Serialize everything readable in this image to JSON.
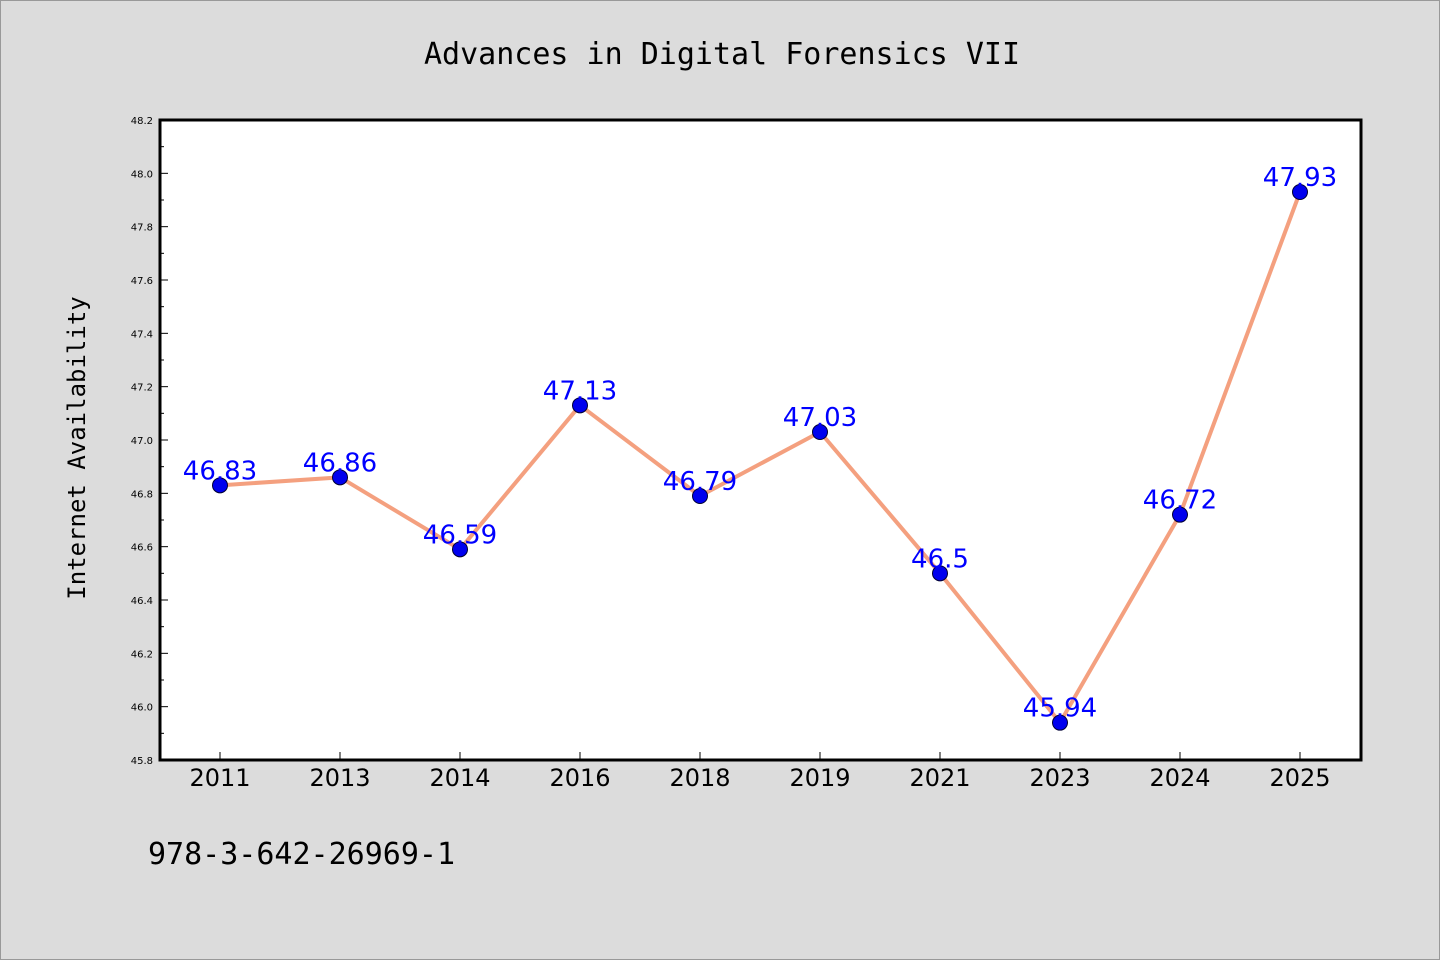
{
  "chart_data": {
    "type": "line",
    "title": "Advances in Digital Forensics VII",
    "xlabel": "",
    "ylabel": "Internet Availability",
    "categories": [
      "2011",
      "2013",
      "2014",
      "2016",
      "2018",
      "2019",
      "2021",
      "2023",
      "2024",
      "2025"
    ],
    "series": [
      {
        "values": [
          46.83,
          46.86,
          46.59,
          47.13,
          46.79,
          47.03,
          46.5,
          45.94,
          46.72,
          47.93
        ],
        "labels": [
          "46.83",
          "46.86",
          "46.59",
          "47.13",
          "46.79",
          "47.03",
          "46.5",
          "45.94",
          "46.72",
          "47.93"
        ]
      }
    ],
    "ylim": [
      45.8,
      48.2
    ],
    "yticks": [
      "45.8",
      "46.0",
      "46.2",
      "46.4",
      "46.6",
      "46.8",
      "47.0",
      "47.2",
      "47.4",
      "47.6",
      "47.8",
      "48.0",
      "48.2"
    ],
    "grid": false,
    "legend": "none",
    "colors": {
      "line": "#f4a07f",
      "marker": "#0000ee",
      "label": "#0000ff",
      "plot_background": "#ffffff",
      "page_background": "#dcdcdc"
    }
  },
  "footer": {
    "code": "978-3-642-26969-1"
  }
}
